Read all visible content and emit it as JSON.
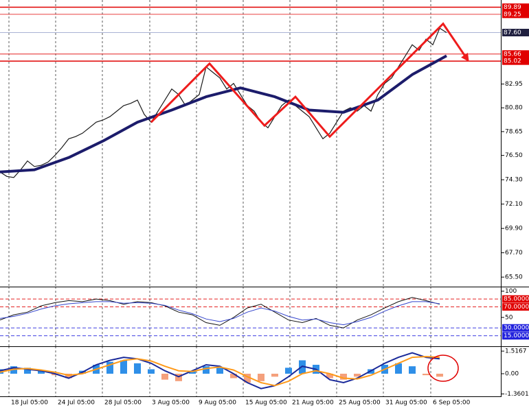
{
  "chart_data": [
    {
      "type": "line",
      "xlim": [
        0,
        73
      ],
      "ylim": [
        64.64,
        90.42
      ],
      "yticks": [
        {
          "value": 82.95,
          "label": "82.95"
        },
        {
          "value": 80.8,
          "label": "80.80"
        },
        {
          "value": 78.65,
          "label": "78.65"
        },
        {
          "value": 76.5,
          "label": "76.50"
        },
        {
          "value": 74.3,
          "label": "74.30"
        },
        {
          "value": 72.1,
          "label": "72.10"
        },
        {
          "value": 69.9,
          "label": "69.90"
        },
        {
          "value": 67.7,
          "label": "67.70"
        },
        {
          "value": 65.5,
          "label": "65.50"
        }
      ],
      "levels": [
        {
          "value": 89.89,
          "label": "89.89",
          "color": "#e00000"
        },
        {
          "value": 89.25,
          "label": "89.25",
          "color": "#e00000"
        },
        {
          "value": 85.66,
          "label": "85.66",
          "color": "#e00000"
        },
        {
          "value": 85.02,
          "label": "85.02",
          "color": "#e00000"
        }
      ],
      "last_price": {
        "value": 87.6,
        "label": "87.60",
        "color": "#202040"
      },
      "x": [
        0,
        1,
        2,
        3,
        4,
        5,
        6,
        7,
        8,
        9,
        10,
        11,
        12,
        13,
        14,
        15,
        16,
        17,
        18,
        19,
        20,
        21,
        22,
        23,
        24,
        25,
        26,
        27,
        28,
        29,
        30,
        31,
        32,
        33,
        34,
        35,
        36,
        37,
        38,
        39,
        40,
        41,
        42,
        43,
        44,
        45,
        46,
        47,
        48,
        49,
        50,
        51,
        52,
        53,
        54,
        55,
        56,
        57,
        58,
        59,
        60,
        61,
        62,
        63,
        64,
        65
      ],
      "values": [
        75.0,
        74.6,
        74.5,
        75.2,
        76.0,
        75.5,
        75.6,
        75.9,
        76.5,
        77.2,
        78.0,
        78.2,
        78.5,
        79.0,
        79.5,
        79.7,
        80.0,
        80.5,
        81.0,
        81.2,
        81.5,
        80.2,
        79.5,
        80.5,
        81.5,
        82.5,
        82.0,
        81.0,
        81.5,
        82.0,
        84.5,
        84.0,
        83.5,
        82.5,
        83.0,
        82.0,
        81.0,
        80.5,
        79.5,
        79.0,
        80.0,
        81.0,
        81.5,
        81.0,
        80.5,
        80.0,
        79.0,
        78.0,
        78.5,
        79.5,
        80.5,
        80.8,
        80.5,
        81.0,
        80.5,
        82.0,
        83.0,
        83.5,
        84.5,
        85.5,
        86.5,
        86.0,
        87.0,
        86.5,
        88.0,
        87.6
      ],
      "color": "#1a1a1a",
      "moving_average": {
        "x": [
          0,
          5,
          10,
          15,
          20,
          25,
          30,
          35,
          40,
          45,
          50,
          55,
          60,
          65
        ],
        "values": [
          75.0,
          75.2,
          76.3,
          77.8,
          79.5,
          80.6,
          81.8,
          82.6,
          81.8,
          80.6,
          80.4,
          81.5,
          83.8,
          85.5
        ],
        "color": "#1c1c6b"
      },
      "zigzag": {
        "x": [
          22,
          30.5,
          38.5,
          43,
          48,
          64.5,
          68
        ],
        "values": [
          79.5,
          84.8,
          79.2,
          81.8,
          78.2,
          88.4,
          85.2
        ],
        "color": "#ee1c1c"
      }
    },
    {
      "type": "line",
      "xlim": [
        0,
        73
      ],
      "ylim": [
        -5,
        106
      ],
      "yticks": [
        100,
        50
      ],
      "levels": [
        {
          "value": 85,
          "label": "85.0000",
          "color": "#e00000"
        },
        {
          "value": 70,
          "label": "70.0000",
          "color": "#e00000"
        },
        {
          "value": 30,
          "label": "30.0000",
          "color": "#2222dd"
        },
        {
          "value": 15,
          "label": "15.0000",
          "color": "#2222dd"
        }
      ],
      "x": [
        0,
        2,
        4,
        6,
        8,
        10,
        12,
        14,
        16,
        18,
        20,
        22,
        24,
        26,
        28,
        30,
        32,
        34,
        36,
        38,
        40,
        42,
        44,
        46,
        48,
        50,
        52,
        54,
        56,
        58,
        60,
        62,
        64
      ],
      "series": [
        {
          "color": "#111111",
          "values": [
            45,
            55,
            60,
            72,
            78,
            82,
            80,
            85,
            82,
            75,
            80,
            78,
            72,
            60,
            55,
            40,
            35,
            50,
            68,
            75,
            60,
            45,
            40,
            48,
            35,
            30,
            45,
            55,
            68,
            80,
            88,
            82,
            75
          ]
        },
        {
          "color": "#3344cc",
          "values": [
            48,
            52,
            58,
            66,
            72,
            76,
            78,
            80,
            80,
            77,
            78,
            77,
            73,
            64,
            57,
            47,
            42,
            48,
            60,
            68,
            62,
            52,
            45,
            47,
            40,
            36,
            42,
            50,
            62,
            72,
            80,
            80,
            76
          ]
        }
      ]
    },
    {
      "type": "bar",
      "xlim": [
        0,
        73
      ],
      "ylim": [
        -1.52,
        1.75
      ],
      "yticks": [
        {
          "value": 1.5167,
          "label": "1.5167"
        },
        {
          "value": 0,
          "label": "0.00"
        },
        {
          "value": -1.3601,
          "label": "-1.3601"
        }
      ],
      "xticks": [
        {
          "value": 1.3,
          "label": "18 Jul 05:00"
        },
        {
          "value": 8.1,
          "label": "24 Jul 05:00"
        },
        {
          "value": 14.9,
          "label": "28 Jul 05:00"
        },
        {
          "value": 21.8,
          "label": "3 Aug 05:00"
        },
        {
          "value": 28.6,
          "label": "9 Aug 05:00"
        },
        {
          "value": 35.4,
          "label": "15 Aug 05:00"
        },
        {
          "value": 42.2,
          "label": "21 Aug 05:00"
        },
        {
          "value": 49.0,
          "label": "25 Aug 05:00"
        },
        {
          "value": 55.8,
          "label": "31 Aug 05:00"
        },
        {
          "value": 62.7,
          "label": "6 Sep 05:00"
        }
      ],
      "x": [
        0,
        2,
        4,
        6,
        8,
        10,
        12,
        14,
        16,
        18,
        20,
        22,
        24,
        26,
        28,
        30,
        32,
        34,
        36,
        38,
        40,
        42,
        44,
        46,
        48,
        50,
        52,
        54,
        56,
        58,
        60,
        62,
        64
      ],
      "values": [
        0.3,
        0.5,
        0.4,
        0.2,
        -0.1,
        -0.3,
        0.2,
        0.6,
        0.8,
        0.9,
        0.7,
        0.3,
        -0.4,
        -0.5,
        0.2,
        0.5,
        0.4,
        -0.3,
        -0.6,
        -0.5,
        -0.2,
        0.4,
        0.9,
        0.6,
        -0.3,
        -0.4,
        -0.2,
        0.3,
        0.6,
        0.7,
        0.5,
        -0.1,
        -0.2
      ],
      "color": "#2f8fe8",
      "negative_color": "#f4a07c",
      "series": [
        {
          "color": "#1a2a9a",
          "values": [
            0.2,
            0.4,
            0.3,
            0.2,
            0.0,
            -0.3,
            0.1,
            0.6,
            0.9,
            1.1,
            1.0,
            0.7,
            0.2,
            -0.2,
            0.2,
            0.6,
            0.5,
            0.0,
            -0.6,
            -1.0,
            -0.8,
            -0.2,
            0.5,
            0.3,
            -0.4,
            -0.6,
            -0.3,
            0.2,
            0.7,
            1.1,
            1.4,
            1.1,
            1.0
          ]
        },
        {
          "color": "#ff9a1a",
          "values": [
            0.1,
            0.3,
            0.35,
            0.25,
            0.1,
            -0.1,
            0.0,
            0.3,
            0.6,
            0.9,
            1.0,
            0.85,
            0.5,
            0.2,
            0.15,
            0.35,
            0.45,
            0.25,
            -0.2,
            -0.6,
            -0.8,
            -0.5,
            0.0,
            0.2,
            0.0,
            -0.3,
            -0.35,
            -0.1,
            0.3,
            0.7,
            1.1,
            1.15,
            1.1
          ]
        }
      ]
    }
  ]
}
